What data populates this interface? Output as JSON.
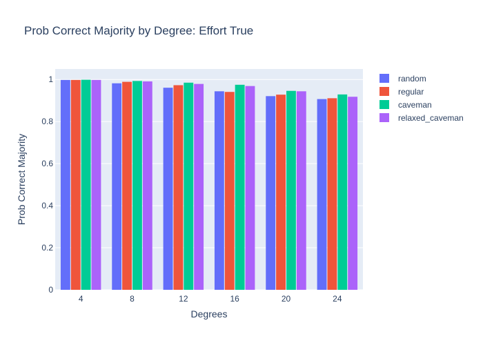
{
  "chart_data": {
    "type": "bar",
    "title": "Prob Correct Majority by Degree: Effort True",
    "xlabel": "Degrees",
    "ylabel": "Prob Correct Majority",
    "categories": [
      "4",
      "8",
      "12",
      "16",
      "20",
      "24"
    ],
    "ylim": [
      0,
      1.05
    ],
    "yticks": [
      0,
      0.2,
      0.4,
      0.6,
      0.8,
      1
    ],
    "ytick_labels": [
      "0",
      "0.2",
      "0.4",
      "0.6",
      "0.8",
      "1"
    ],
    "grid": true,
    "legend_position": "top-right",
    "plot_background": "#e5ecf6",
    "series": [
      {
        "name": "random",
        "color": "#636efa",
        "values": [
          0.998,
          0.982,
          0.961,
          0.944,
          0.921,
          0.907
        ]
      },
      {
        "name": "regular",
        "color": "#ef553b",
        "values": [
          0.998,
          0.989,
          0.973,
          0.941,
          0.928,
          0.911
        ]
      },
      {
        "name": "caveman",
        "color": "#00cc96",
        "values": [
          0.999,
          0.993,
          0.985,
          0.975,
          0.946,
          0.929
        ]
      },
      {
        "name": "relaxed_caveman",
        "color": "#ab63fa",
        "values": [
          0.998,
          0.991,
          0.979,
          0.969,
          0.944,
          0.918
        ]
      }
    ]
  }
}
